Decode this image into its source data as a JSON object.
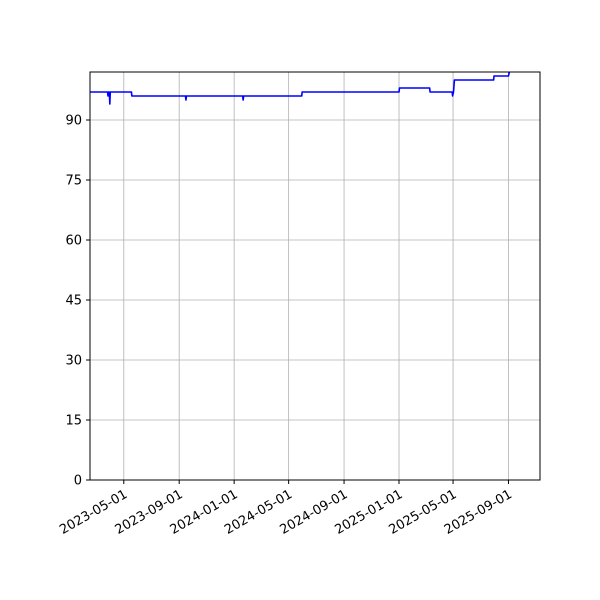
{
  "chart_data": {
    "type": "line",
    "title": "",
    "xlabel": "",
    "ylabel": "",
    "x_axis_type": "date",
    "xlim": [
      "2023-02-15",
      "2025-11-10"
    ],
    "ylim": [
      0,
      102
    ],
    "grid": true,
    "yticks": [
      0,
      15,
      30,
      45,
      60,
      75,
      90
    ],
    "ytick_labels": [
      "0",
      "15",
      "30",
      "45",
      "60",
      "75",
      "90"
    ],
    "xticks": [
      "2023-05-01",
      "2023-09-01",
      "2024-01-01",
      "2024-05-01",
      "2024-09-01",
      "2025-01-01",
      "2025-05-01",
      "2025-09-01"
    ],
    "xtick_labels": [
      "2023-05-01",
      "2023-09-01",
      "2024-01-01",
      "2024-05-01",
      "2024-09-01",
      "2025-01-01",
      "2025-05-01",
      "2025-09-01"
    ],
    "series": [
      {
        "color": "#0000ff",
        "points": [
          [
            "2023-02-15",
            97
          ],
          [
            "2023-03-26",
            97
          ],
          [
            "2023-03-27",
            96
          ],
          [
            "2023-03-28",
            97
          ],
          [
            "2023-03-30",
            97
          ],
          [
            "2023-03-31",
            94
          ],
          [
            "2023-04-01",
            97
          ],
          [
            "2023-05-18",
            97
          ],
          [
            "2023-05-19",
            96
          ],
          [
            "2023-09-15",
            96
          ],
          [
            "2023-09-16",
            95
          ],
          [
            "2023-09-17",
            96
          ],
          [
            "2024-01-20",
            96
          ],
          [
            "2024-01-21",
            95
          ],
          [
            "2024-01-22",
            96
          ],
          [
            "2024-05-30",
            96
          ],
          [
            "2024-05-31",
            97
          ],
          [
            "2025-01-01",
            97
          ],
          [
            "2025-01-02",
            98
          ],
          [
            "2025-03-10",
            98
          ],
          [
            "2025-03-11",
            97
          ],
          [
            "2025-04-29",
            97
          ],
          [
            "2025-04-30",
            96
          ],
          [
            "2025-05-02",
            97
          ],
          [
            "2025-05-04",
            100
          ],
          [
            "2025-07-30",
            100
          ],
          [
            "2025-07-31",
            101
          ],
          [
            "2025-09-01",
            101
          ],
          [
            "2025-09-03",
            102
          ]
        ]
      }
    ]
  }
}
